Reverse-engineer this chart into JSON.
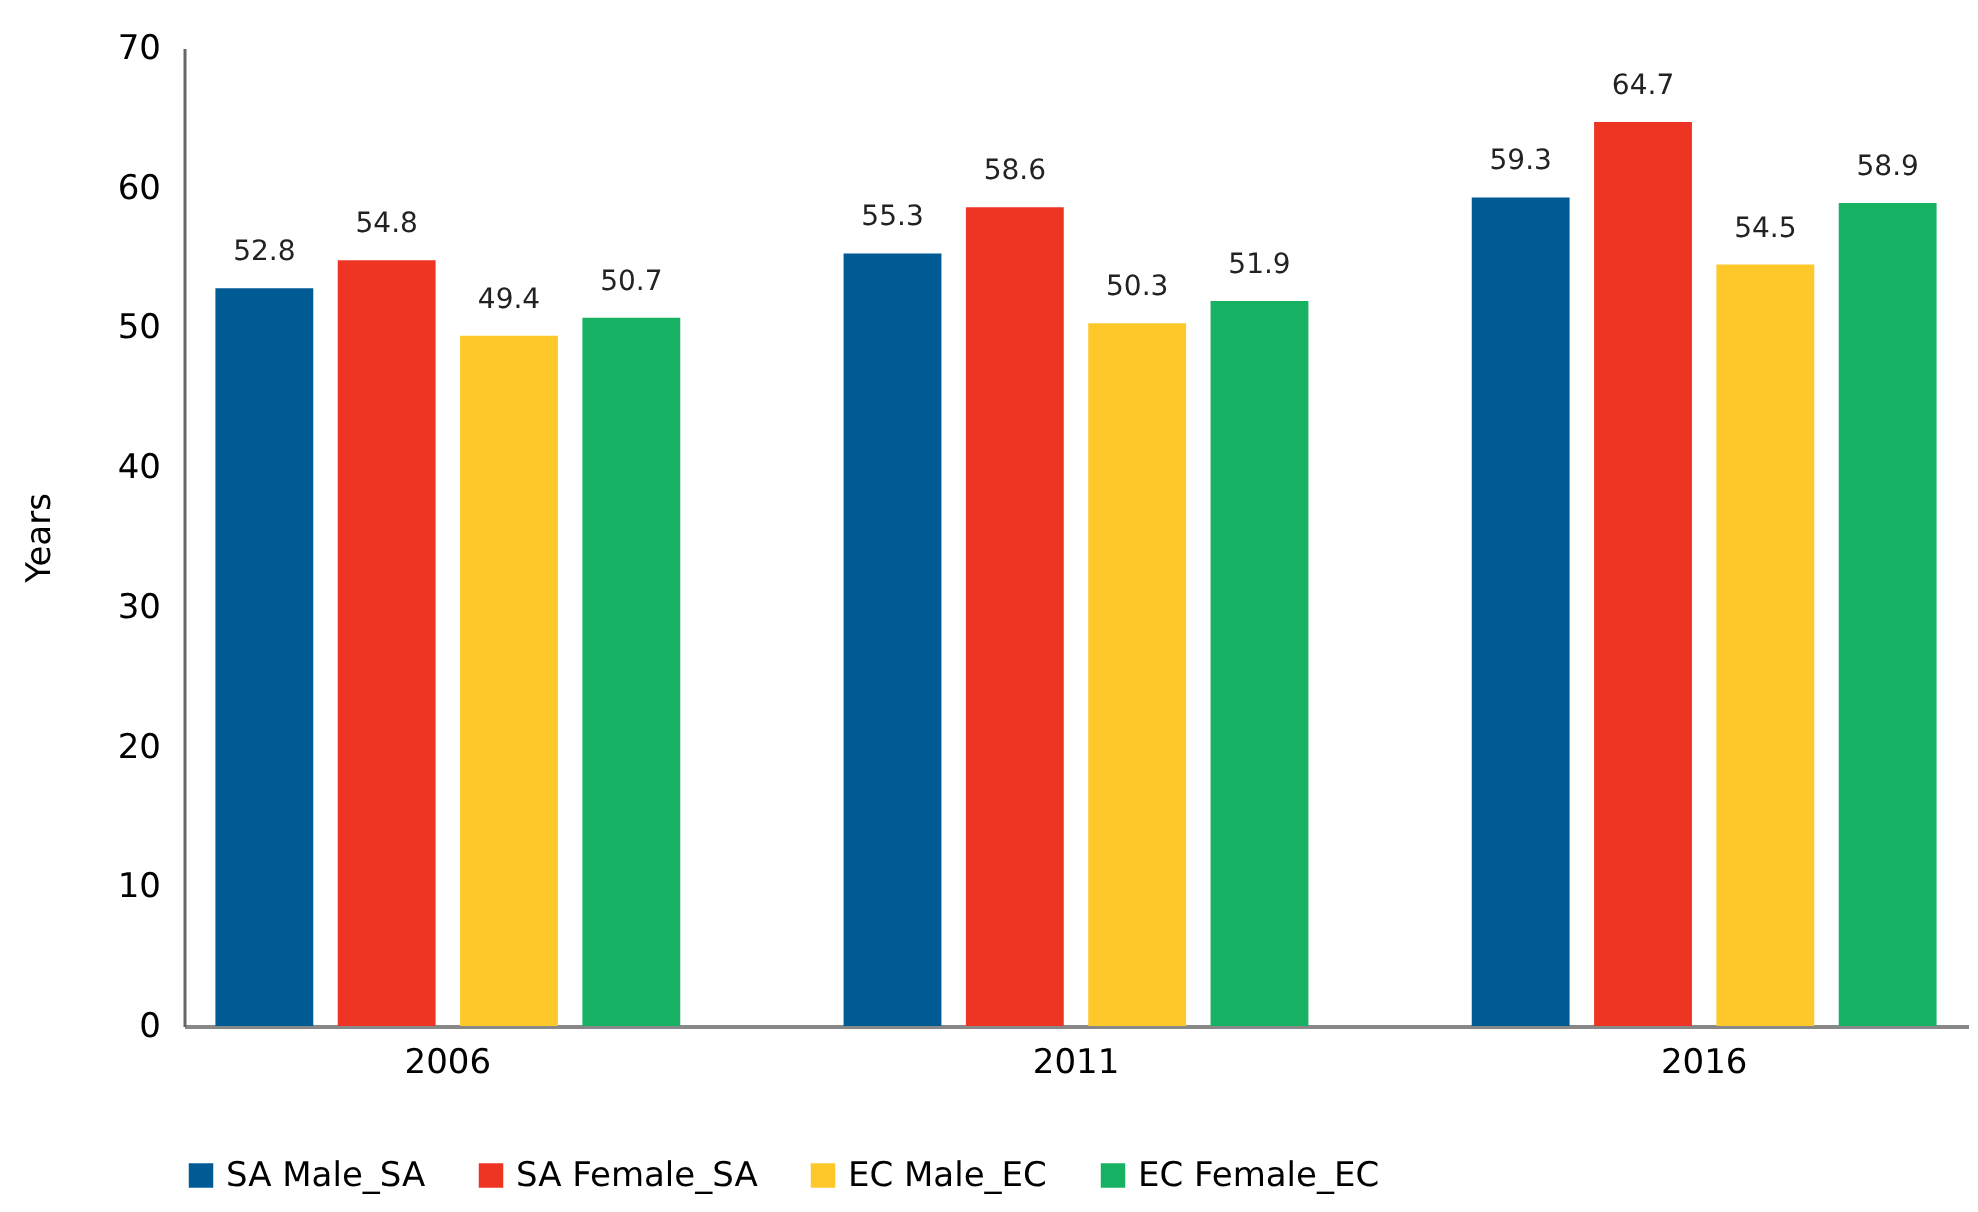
{
  "chart_data": {
    "type": "bar",
    "ylabel": "Years",
    "categories": [
      "2006",
      "2011",
      "2016"
    ],
    "series": [
      {
        "name": "SA Male_SA",
        "color": "#005b94",
        "values": [
          52.8,
          55.3,
          59.3
        ]
      },
      {
        "name": "SA Female_SA",
        "color": "#ee3524",
        "values": [
          54.8,
          58.6,
          64.7
        ]
      },
      {
        "name": "EC Male_EC",
        "color": "#fec82a",
        "values": [
          49.4,
          50.3,
          54.5
        ]
      },
      {
        "name": "EC Female_EC",
        "color": "#17b164",
        "values": [
          50.7,
          51.9,
          58.9
        ]
      }
    ],
    "ylim": [
      0,
      70
    ],
    "yticks": [
      0,
      10,
      20,
      30,
      40,
      50,
      60,
      70
    ],
    "grid": false,
    "legend": "bottom",
    "data_labels": true
  }
}
